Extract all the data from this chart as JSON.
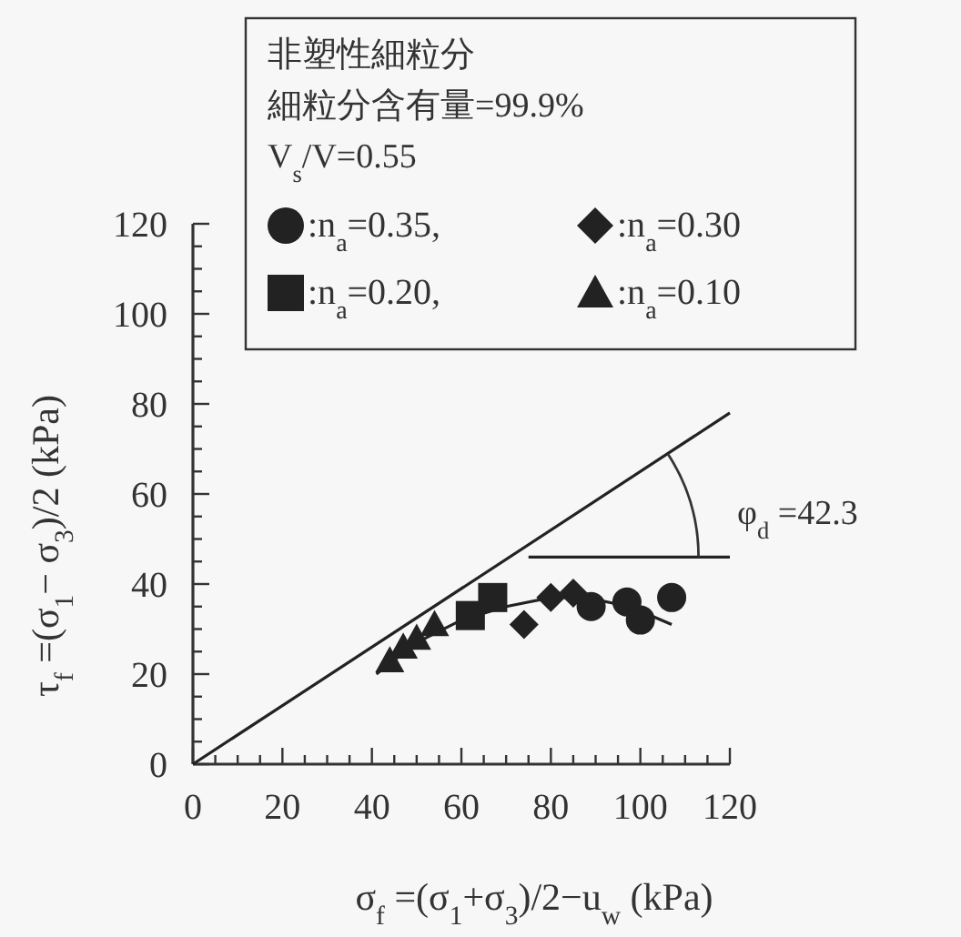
{
  "chart_data": {
    "type": "scatter",
    "xlabel": "σ$_{f}$ =(σ$_{1}$+σ$_{3}$)/2−u$_{w}$   (kPa)",
    "ylabel": "τ$_{f}$ =(σ$_{1}$− σ$_{3}$)/2   (kPa)",
    "legend": "top",
    "legend_title": "非塑性細粒分",
    "annotations": [
      "細粒分含有量=99.9%",
      "V$_{s}$/V=0.55",
      "φ$_{d}$ =42.3"
    ],
    "xlim": [
      0,
      120
    ],
    "ylim": [
      0,
      120
    ],
    "xticks": [
      0,
      {
        "value": 5,
        "label": null
      },
      {
        "value": 10,
        "label": null
      },
      {
        "value": 15,
        "label": null
      },
      20,
      {
        "value": 25,
        "label": null
      },
      {
        "value": 30,
        "label": null
      },
      {
        "value": 35,
        "label": null
      },
      40,
      {
        "value": 45,
        "label": null
      },
      {
        "value": 50,
        "label": null
      },
      {
        "value": 55,
        "label": null
      },
      60,
      {
        "value": 65,
        "label": null
      },
      {
        "value": 70,
        "label": null
      },
      {
        "value": 75,
        "label": null
      },
      80,
      {
        "value": 85,
        "label": null
      },
      {
        "value": 90,
        "label": null
      },
      {
        "value": 95,
        "label": null
      },
      100,
      {
        "value": 105,
        "label": null
      },
      {
        "value": 110,
        "label": null
      },
      {
        "value": 115,
        "label": null
      },
      120
    ],
    "yticks": [
      0,
      {
        "value": 5,
        "label": null
      },
      {
        "value": 10,
        "label": null
      },
      {
        "value": 15,
        "label": null
      },
      20,
      {
        "value": 25,
        "label": null
      },
      {
        "value": 30,
        "label": null
      },
      {
        "value": 35,
        "label": null
      },
      40,
      {
        "value": 45,
        "label": null
      },
      {
        "value": 50,
        "label": null
      },
      {
        "value": 55,
        "label": null
      },
      60,
      {
        "value": 65,
        "label": null
      },
      {
        "value": 70,
        "label": null
      },
      {
        "value": 75,
        "label": null
      },
      80,
      {
        "value": 85,
        "label": null
      },
      {
        "value": 90,
        "label": null
      },
      {
        "value": 95,
        "label": null
      },
      100,
      {
        "value": 105,
        "label": null
      },
      {
        "value": 110,
        "label": null
      },
      {
        "value": 115,
        "label": null
      },
      120
    ],
    "series": [
      {
        "name": ":n$_{a}$=0.35,",
        "marker": "circle",
        "color": "#222222",
        "x": [
          89,
          97,
          100,
          107
        ],
        "values": [
          35,
          36,
          32,
          37
        ]
      },
      {
        "name": ":n$_{a}$=0.30",
        "marker": "diamond",
        "color": "#222222",
        "x": [
          74,
          80,
          85
        ],
        "values": [
          31,
          37,
          38
        ]
      },
      {
        "name": ":n$_{a}$=0.20,",
        "marker": "square",
        "color": "#222222",
        "x": [
          62,
          67
        ],
        "values": [
          33,
          37
        ]
      },
      {
        "name": ":n$_{a}$=0.10",
        "marker": "triangle",
        "color": "#222222",
        "x": [
          44,
          47,
          50,
          54
        ],
        "values": [
          23,
          26,
          28,
          31
        ]
      },
      {
        "type": "line",
        "color": "#222222",
        "x": [
          0,
          120
        ],
        "values": [
          0,
          78
        ]
      },
      {
        "type": "line",
        "color": "#222222",
        "x": [
          75,
          120
        ],
        "values": [
          46,
          46
        ]
      },
      {
        "type": "line",
        "color": "#222222",
        "x": [
          41,
          50,
          60,
          70,
          80,
          88,
          95,
          100,
          107
        ],
        "values": [
          20,
          27,
          32,
          35,
          37,
          37,
          35.5,
          34,
          31
        ]
      }
    ]
  }
}
